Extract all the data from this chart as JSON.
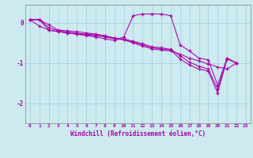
{
  "background_color": "#cceaf0",
  "grid_color": "#aad4dc",
  "line_color": "#aa00aa",
  "xlabel": "Windchill (Refroidissement éolien,°C)",
  "xlim": [
    -0.5,
    23.5
  ],
  "ylim": [
    -2.5,
    0.45
  ],
  "yticks": [
    0,
    -1,
    -2
  ],
  "xticks": [
    0,
    1,
    2,
    3,
    4,
    5,
    6,
    7,
    8,
    9,
    10,
    11,
    12,
    13,
    14,
    15,
    16,
    17,
    18,
    19,
    20,
    21,
    22,
    23
  ],
  "series": [
    [
      0.08,
      0.08,
      -0.05,
      -0.18,
      -0.2,
      -0.22,
      -0.25,
      -0.28,
      -0.32,
      -0.38,
      -0.42,
      -0.5,
      -0.58,
      -0.65,
      -0.68,
      -0.7,
      -0.78,
      -0.88,
      -0.95,
      -1.02,
      -1.1,
      -1.15,
      -1.0
    ],
    [
      0.08,
      -0.08,
      -0.18,
      -0.22,
      -0.25,
      -0.28,
      -0.32,
      -0.35,
      -0.4,
      -0.44,
      -0.35,
      0.18,
      0.22,
      0.22,
      0.22,
      0.18,
      -0.55,
      -0.7,
      -0.88,
      -0.92,
      -1.55,
      -0.88,
      -1.0
    ],
    [
      0.08,
      0.08,
      -0.18,
      -0.22,
      -0.25,
      -0.28,
      -0.3,
      -0.32,
      -0.35,
      -0.4,
      -0.42,
      -0.48,
      -0.55,
      -0.62,
      -0.65,
      -0.68,
      -0.9,
      -1.05,
      -1.15,
      -1.2,
      -1.75,
      -0.9,
      -1.0
    ],
    [
      0.08,
      0.08,
      -0.12,
      -0.2,
      -0.23,
      -0.26,
      -0.28,
      -0.3,
      -0.33,
      -0.38,
      -0.4,
      -0.46,
      -0.52,
      -0.6,
      -0.62,
      -0.66,
      -0.82,
      -0.98,
      -1.08,
      -1.15,
      -1.65,
      -0.88,
      -1.0
    ]
  ]
}
